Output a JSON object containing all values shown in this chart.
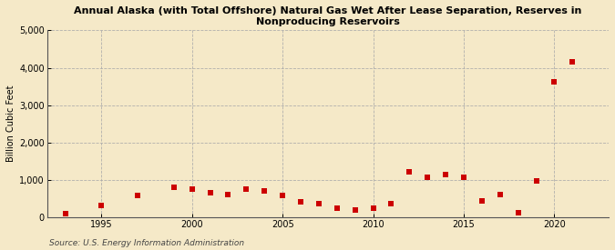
{
  "title": "Annual Alaska (with Total Offshore) Natural Gas Wet After Lease Separation, Reserves in\nNonproducing Reservoirs",
  "ylabel": "Billion Cubic Feet",
  "source": "Source: U.S. Energy Information Administration",
  "background_color": "#f5e9c8",
  "plot_background_color": "#f5e9c8",
  "marker_color": "#cc0000",
  "grid_color": "#aaaaaa",
  "ylim": [
    0,
    5000
  ],
  "yticks": [
    0,
    1000,
    2000,
    3000,
    4000,
    5000
  ],
  "ytick_labels": [
    "0",
    "1,000",
    "2,000",
    "3,000",
    "4,000",
    "5,000"
  ],
  "xticks": [
    1995,
    2000,
    2005,
    2010,
    2015,
    2020
  ],
  "xlim": [
    1992,
    2023
  ],
  "years": [
    1993,
    1995,
    1997,
    1999,
    2000,
    2001,
    2002,
    2003,
    2004,
    2005,
    2006,
    2007,
    2008,
    2009,
    2010,
    2011,
    2012,
    2013,
    2014,
    2015,
    2016,
    2017,
    2018,
    2019,
    2020,
    2021
  ],
  "values": [
    100,
    310,
    570,
    790,
    760,
    650,
    610,
    750,
    700,
    590,
    400,
    370,
    230,
    190,
    230,
    360,
    1220,
    1060,
    1130,
    1060,
    440,
    600,
    120,
    960,
    3620,
    4150
  ]
}
